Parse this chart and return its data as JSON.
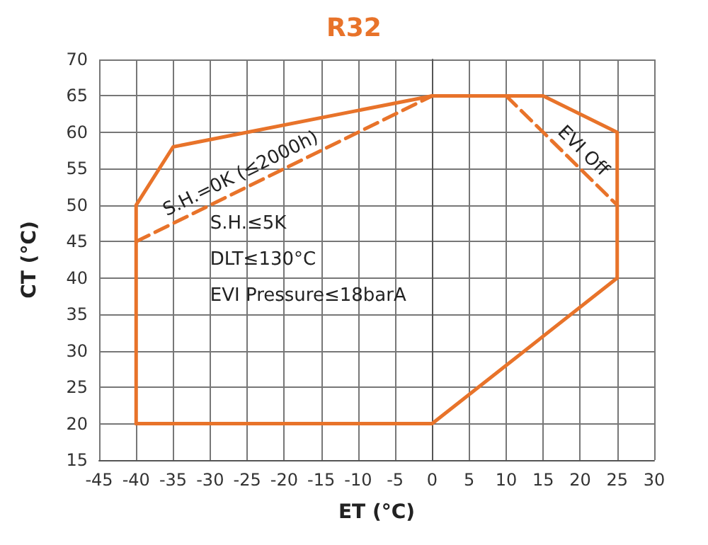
{
  "chart_data": {
    "type": "line",
    "title": "R32",
    "xlabel": "ET (°C)",
    "ylabel": "CT (°C)",
    "series": [
      {
        "color": "#e8732a",
        "x": [
          -40,
          -40,
          -35,
          0,
          15,
          25,
          25
        ],
        "values": [
          20,
          50,
          58,
          65,
          65,
          60,
          40
        ]
      },
      {
        "color": "#e8732a",
        "x": [
          -40,
          0,
          25
        ],
        "values": [
          20,
          20,
          40
        ]
      },
      {
        "color": "#e8732a",
        "x": [
          -40,
          0
        ],
        "values": [
          45,
          65
        ],
        "line_style": "dashed"
      },
      {
        "color": "#e8732a",
        "x": [
          10,
          25
        ],
        "values": [
          65,
          50
        ],
        "line_style": "dashed"
      }
    ],
    "annotations": [
      {
        "text": "S.H.=0K (≤2000h)",
        "x": -25,
        "y": 52.5
      },
      {
        "text": "EVI Off",
        "x": 19,
        "y": 56
      },
      "S.H.≤5K",
      "DLT≤130°C",
      "EVI Pressure≤18barA"
    ],
    "xlim": [
      -45,
      30
    ],
    "xticks": [
      -45,
      -40,
      -35,
      -30,
      -25,
      -20,
      -15,
      -10,
      -5,
      0,
      5,
      10,
      15,
      20,
      25,
      30
    ],
    "ylim": [
      15,
      70
    ],
    "yticks": [
      15,
      20,
      25,
      30,
      35,
      40,
      45,
      50,
      55,
      60,
      65,
      70
    ],
    "grid": true,
    "marker": "none",
    "line_style": "solid"
  }
}
